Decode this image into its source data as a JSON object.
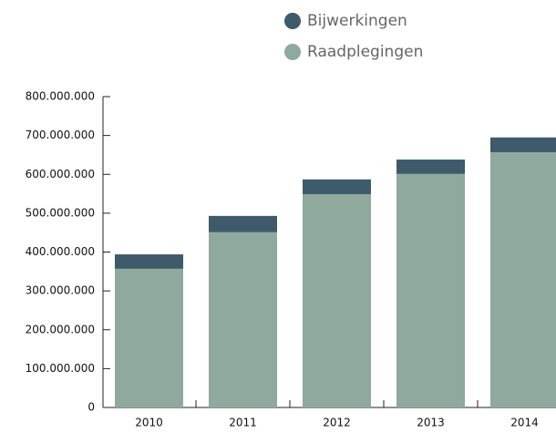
{
  "chart_data": {
    "type": "stacked_bar",
    "categories": [
      "2010",
      "2011",
      "2012",
      "2013",
      "2014"
    ],
    "series": [
      {
        "name": "Bijwerkingen",
        "color": "#3e5a6b",
        "values": [
          37000000,
          42000000,
          38000000,
          37000000,
          38000000
        ]
      },
      {
        "name": "Raadplegingen",
        "color": "#8fa99c",
        "values": [
          357000000,
          451000000,
          549000000,
          601000000,
          657000000
        ]
      }
    ],
    "ylim": [
      0,
      800000000
    ],
    "yticks": [
      0,
      {
        "value": 100000000,
        "label": "100.000.000"
      },
      {
        "value": 200000000,
        "label": "200.000.000"
      },
      {
        "value": 300000000,
        "label": "300.000.000"
      },
      {
        "value": 400000000,
        "label": "400.000.000"
      },
      {
        "value": 500000000,
        "label": "500.000.000"
      },
      {
        "value": 600000000,
        "label": "600.000.000"
      },
      {
        "value": 700000000,
        "label": "700.000.000"
      },
      {
        "value": 800000000,
        "label": "800.000.000"
      }
    ],
    "grid": false
  }
}
